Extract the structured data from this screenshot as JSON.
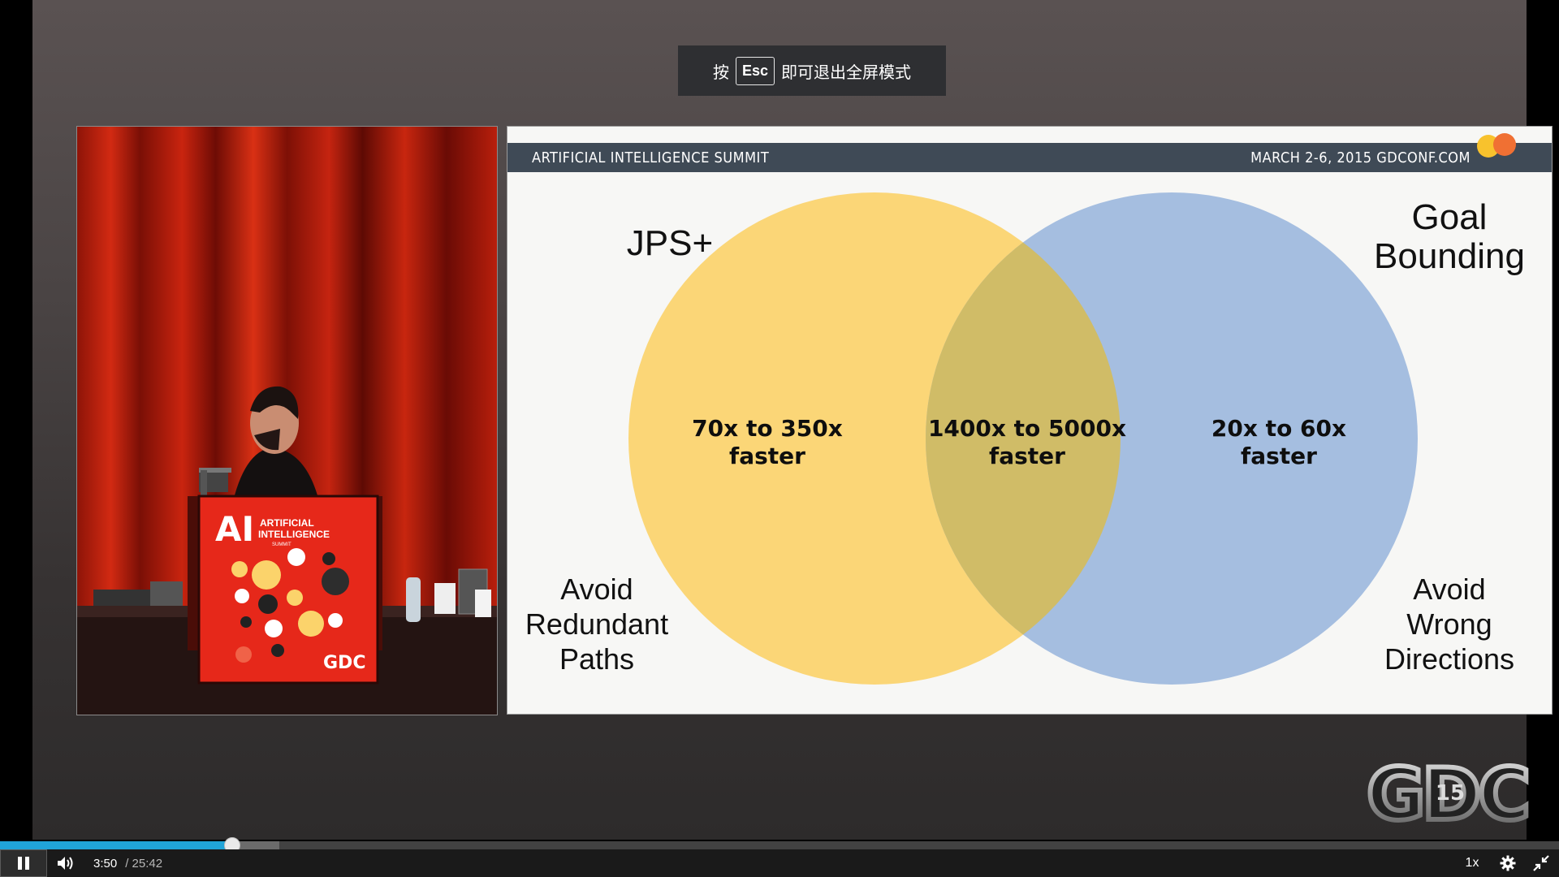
{
  "fullscreen_notice": {
    "prefix": "按",
    "key": "Esc",
    "suffix": "即可退出全屏模式"
  },
  "slide": {
    "header_left": "ARTIFICIAL INTELLIGENCE SUMMIT",
    "header_right": "MARCH 2-6, 2015   GDCONF.COM",
    "left_title": "JPS+",
    "right_title_line1": "Goal",
    "right_title_line2": "Bounding",
    "left_value_line1": "70x to 350x",
    "left_value_line2": "faster",
    "center_value_line1": "1400x to 5000x",
    "center_value_line2": "faster",
    "right_value_line1": "20x to 60x",
    "right_value_line2": "faster",
    "left_caption_line1": "Avoid",
    "left_caption_line2": "Redundant",
    "left_caption_line3": "Paths",
    "right_caption_line1": "Avoid",
    "right_caption_line2": "Wrong",
    "right_caption_line3": "Directions",
    "colors": {
      "left_circle": "#fbd36b",
      "right_circle": "#9db8dd",
      "header": "#3f4a56"
    }
  },
  "podium": {
    "logo_big": "AI",
    "logo_small_1": "ARTIFICIAL",
    "logo_small_2": "INTELLIGENCE",
    "logo_small_3": "SUMMIT",
    "brand": "GDC"
  },
  "watermark": {
    "text": "GDC",
    "badge": "15"
  },
  "player": {
    "current_time": "3:50",
    "duration": "/ 25:42",
    "speed": "1x",
    "progress_fraction": 0.149,
    "buffered_fraction": 0.179,
    "icons": [
      "pause-icon",
      "volume-icon",
      "gear-icon",
      "exit-fullscreen-icon"
    ]
  }
}
